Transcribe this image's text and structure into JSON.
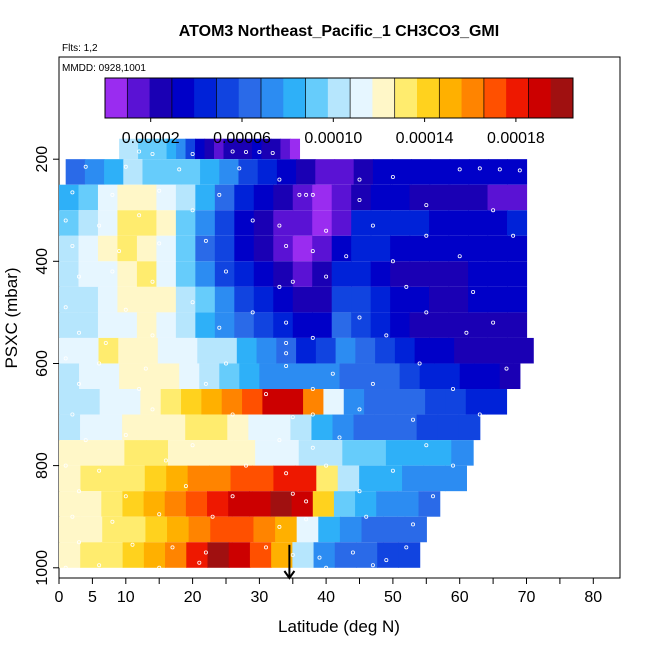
{
  "chart_data": {
    "type": "heatmap",
    "title": "ATOM3 Northeast_Pacific_1 CH3CO3_GMI",
    "subtitle_flights": "Flts: 1,2",
    "subtitle_dates": "MMDD: 0928,1001",
    "xlabel": "Latitude (deg N)",
    "ylabel": "PSXC (mbar)",
    "xlim": [
      0,
      84
    ],
    "ylim": [
      1020,
      0
    ],
    "x_ticks": [
      0,
      5,
      10,
      20,
      30,
      40,
      50,
      60,
      70,
      80
    ],
    "x_tick_labels": [
      "0",
      "5",
      "10",
      "20",
      "30",
      "40",
      "50",
      "60",
      "70",
      "80"
    ],
    "y_ticks": [
      200,
      400,
      600,
      800,
      1000
    ],
    "y_tick_labels": [
      "200",
      "400",
      "600",
      "800",
      "1000"
    ],
    "colorbar": {
      "min": 0.0,
      "max": 0.000205,
      "tick_values": [
        2e-05,
        6e-05,
        0.0001,
        0.00014,
        0.00018
      ],
      "tick_labels": [
        "0.00002",
        "0.00006",
        "0.00010",
        "0.00014",
        "0.00018"
      ],
      "colors": [
        "#9a2cf0",
        "#5a12d4",
        "#1a00b4",
        "#0000c8",
        "#0022d8",
        "#1144e0",
        "#2a6ae8",
        "#2c8cf2",
        "#2eb0f8",
        "#66ccfb",
        "#b6e6fd",
        "#e6f6ff",
        "#fff7c8",
        "#ffec6e",
        "#ffd21e",
        "#ffb000",
        "#ff8400",
        "#ff5000",
        "#ee1800",
        "#cc0000",
        "#a01010"
      ]
    },
    "bands": [
      {
        "p_top": 160,
        "p_bot": 200,
        "lat_start": 9,
        "lat_end": 36,
        "values": [
          0.000105,
          0.0001,
          9.5e-05,
          9e-05,
          9.5e-05,
          8.5e-05,
          7e-05,
          5e-05,
          3e-05,
          2e-05,
          1.8e-05,
          2e-05,
          2.5e-05,
          2.8e-05,
          3e-05,
          2.8e-05,
          2.2e-05,
          1e-05,
          6e-06
        ]
      },
      {
        "p_top": 200,
        "p_bot": 250,
        "lat_start": 1,
        "lat_end": 70,
        "values": [
          6.5e-05,
          7e-05,
          8e-05,
          0.0001,
          9.5e-05,
          9e-05,
          9e-05,
          8e-05,
          7e-05,
          5e-05,
          4e-05,
          3e-05,
          2e-05,
          1.5e-05,
          1e-05,
          2e-05,
          3.5e-05,
          3.5e-05,
          3.5e-05,
          3.5e-05,
          3.5e-05,
          3.2e-05,
          3e-05,
          3e-05
        ]
      },
      {
        "p_top": 250,
        "p_bot": 300,
        "lat_start": 0,
        "lat_end": 70,
        "values": [
          8e-05,
          9e-05,
          0.00011,
          0.00012,
          0.000125,
          0.000115,
          0.0001,
          8e-05,
          6e-05,
          4.5e-05,
          3e-05,
          2e-05,
          1.2e-05,
          8e-06,
          1.8e-05,
          2.8e-05,
          3.2e-05,
          3e-05,
          2.8e-05,
          2.6e-05,
          2.4e-05,
          2e-05,
          1.8e-05,
          1.8e-05
        ]
      },
      {
        "p_top": 300,
        "p_bot": 350,
        "lat_start": 0,
        "lat_end": 70,
        "values": [
          9e-05,
          0.0001,
          0.000115,
          0.00013,
          0.000135,
          0.00012,
          9.5e-05,
          7e-05,
          5e-05,
          3.5e-05,
          2.5e-05,
          1.8e-05,
          1.2e-05,
          8e-06,
          1.5e-05,
          4e-05,
          4.5e-05,
          4.2e-05,
          4e-05,
          3.8e-05,
          3.6e-05,
          3.6e-05,
          3.8e-05,
          4e-05
        ]
      },
      {
        "p_top": 350,
        "p_bot": 400,
        "lat_start": 0,
        "lat_end": 70,
        "values": [
          0.0001,
          0.00011,
          0.00012,
          0.00013,
          0.000125,
          0.00011,
          9e-05,
          6.5e-05,
          5e-05,
          3.5e-05,
          2.5e-05,
          1.5e-05,
          8e-06,
          1.2e-05,
          3e-05,
          4e-05,
          4e-05,
          3.8e-05,
          3.6e-05,
          3.4e-05,
          3.4e-05,
          3.4e-05,
          3.4e-05,
          3.6e-05
        ]
      },
      {
        "p_top": 400,
        "p_bot": 450,
        "lat_start": 0,
        "lat_end": 70,
        "values": [
          0.000105,
          0.00011,
          0.000115,
          0.000125,
          0.00013,
          0.000115,
          9e-05,
          7e-05,
          5.5e-05,
          4e-05,
          3e-05,
          2e-05,
          1e-05,
          2e-05,
          4.5e-05,
          4.5e-05,
          3.5e-05,
          2.8e-05,
          2.5e-05,
          2.5e-05,
          2.6e-05,
          3e-05,
          3.2e-05,
          3.5e-05
        ]
      },
      {
        "p_top": 450,
        "p_bot": 500,
        "lat_start": 0,
        "lat_end": 70,
        "values": [
          0.000105,
          0.000105,
          0.00011,
          0.00012,
          0.000125,
          0.00012,
          0.000105,
          9e-05,
          7e-05,
          5.5e-05,
          4e-05,
          3e-05,
          2e-05,
          2.5e-05,
          5.5e-05,
          5.5e-05,
          4.2e-05,
          3.5e-05,
          3e-05,
          2.8e-05,
          2.8e-05,
          3e-05,
          3.2e-05,
          3.4e-05
        ]
      },
      {
        "p_top": 500,
        "p_bot": 550,
        "lat_start": 0,
        "lat_end": 70,
        "values": [
          0.0001,
          0.000105,
          0.00011,
          0.000115,
          0.00012,
          0.000115,
          0.0001,
          8.5e-05,
          7e-05,
          6e-05,
          5e-05,
          4e-05,
          3e-05,
          3e-05,
          6e-05,
          5.5e-05,
          4.5e-05,
          3.5e-05,
          2.8e-05,
          2.5e-05,
          2.5e-05,
          2.4e-05,
          2.4e-05,
          2.6e-05
        ]
      },
      {
        "p_top": 550,
        "p_bot": 600,
        "lat_start": 0,
        "lat_end": 71,
        "values": [
          0.00011,
          0.000115,
          0.00013,
          0.000125,
          0.00012,
          0.000115,
          0.00011,
          0.000105,
          0.0001,
          8.5e-05,
          7e-05,
          6e-05,
          4.5e-05,
          5e-05,
          7e-05,
          6.5e-05,
          5.5e-05,
          4.5e-05,
          3.5e-05,
          3e-05,
          2.8e-05,
          2.5e-05,
          2.2e-05,
          2e-05
        ]
      },
      {
        "p_top": 600,
        "p_bot": 650,
        "lat_start": 0,
        "lat_end": 69,
        "values": [
          0.000105,
          0.00011,
          0.000115,
          0.00012,
          0.000125,
          0.00012,
          0.000115,
          0.000105,
          9.5e-05,
          8.5e-05,
          7.5e-05,
          7e-05,
          7e-05,
          7.5e-05,
          6.5e-05,
          6e-05,
          6e-05,
          5.5e-05,
          4.5e-05,
          4e-05,
          3.5e-05,
          3e-05,
          2.8e-05
        ]
      },
      {
        "p_top": 650,
        "p_bot": 700,
        "lat_start": 0,
        "lat_end": 67,
        "values": [
          0.0001,
          0.000105,
          0.00011,
          0.000115,
          0.000125,
          0.00013,
          0.00014,
          0.00015,
          0.00016,
          0.000175,
          0.00019,
          0.000195,
          0.00016,
          0.00011,
          7e-05,
          6.5e-05,
          6.5e-05,
          6e-05,
          5.5e-05,
          5e-05,
          4.5e-05,
          4e-05
        ]
      },
      {
        "p_top": 700,
        "p_bot": 750,
        "lat_start": 0,
        "lat_end": 63,
        "values": [
          0.000105,
          0.00011,
          0.000115,
          0.00012,
          0.00012,
          0.000125,
          0.00013,
          0.00013,
          0.000125,
          0.000115,
          0.00011,
          0.0001,
          8e-05,
          7e-05,
          6.5e-05,
          6e-05,
          6e-05,
          5.5e-05,
          5.5e-05,
          5e-05
        ]
      },
      {
        "p_top": 750,
        "p_bot": 800,
        "lat_start": 0,
        "lat_end": 62,
        "values": [
          0.00012,
          0.000125,
          0.000125,
          0.00013,
          0.00013,
          0.000125,
          0.000125,
          0.00012,
          0.00012,
          0.000115,
          0.00011,
          0.000105,
          0.0001,
          9.5e-05,
          9e-05,
          8.5e-05,
          8e-05,
          8e-05,
          7.5e-05
        ]
      },
      {
        "p_top": 800,
        "p_bot": 850,
        "lat_start": 0,
        "lat_end": 61,
        "values": [
          0.000125,
          0.00013,
          0.00013,
          0.000135,
          0.00014,
          0.00015,
          0.00016,
          0.000165,
          0.00017,
          0.000175,
          0.00018,
          0.00018,
          0.00013,
          0.0001,
          8.5e-05,
          8e-05,
          7.8e-05,
          7.5e-05,
          7.2e-05
        ]
      },
      {
        "p_top": 850,
        "p_bot": 900,
        "lat_start": 0,
        "lat_end": 57,
        "values": [
          0.00012,
          0.000125,
          0.00013,
          0.00014,
          0.00015,
          0.00016,
          0.00017,
          0.00018,
          0.00019,
          0.000195,
          0.0002,
          0.000195,
          0.00014,
          9e-05,
          8e-05,
          7.5e-05,
          7e-05,
          6.5e-05
        ]
      },
      {
        "p_top": 900,
        "p_bot": 950,
        "lat_start": 0,
        "lat_end": 55,
        "values": [
          0.00012,
          0.000125,
          0.00013,
          0.000135,
          0.000145,
          0.000155,
          0.000165,
          0.00017,
          0.00017,
          0.000165,
          0.00015,
          0.00011,
          8e-05,
          7e-05,
          6.8e-05,
          6.6e-05,
          6.4e-05
        ]
      },
      {
        "p_top": 950,
        "p_bot": 1000,
        "lat_start": 0,
        "lat_end": 54,
        "values": [
          0.000125,
          0.00013,
          0.000135,
          0.00014,
          0.00015,
          0.000165,
          0.000185,
          0.0002,
          0.00019,
          0.000175,
          0.000155,
          0.000105,
          7.5e-05,
          6.5e-05,
          6e-05,
          5.8e-05,
          5.6e-05
        ]
      }
    ],
    "arrow_marker": {
      "lat": 34.5,
      "p_from": 955,
      "p_to": 1020
    },
    "sample_points": [
      [
        12,
        185
      ],
      [
        14,
        190
      ],
      [
        20,
        190
      ],
      [
        26,
        185
      ],
      [
        28,
        186
      ],
      [
        30,
        186
      ],
      [
        32,
        188
      ],
      [
        4,
        215
      ],
      [
        10,
        215
      ],
      [
        18,
        220
      ],
      [
        27,
        218
      ],
      [
        33,
        240
      ],
      [
        60,
        220
      ],
      [
        63,
        218
      ],
      [
        66,
        220
      ],
      [
        69,
        222
      ],
      [
        45,
        240
      ],
      [
        50,
        235
      ],
      [
        2,
        265
      ],
      [
        8,
        270
      ],
      [
        15,
        262
      ],
      [
        24,
        270
      ],
      [
        36,
        270
      ],
      [
        37,
        270
      ],
      [
        38,
        270
      ],
      [
        45,
        280
      ],
      [
        55,
        290
      ],
      [
        65,
        300
      ],
      [
        1,
        320
      ],
      [
        6,
        330
      ],
      [
        12,
        310
      ],
      [
        20,
        300
      ],
      [
        29,
        320
      ],
      [
        33,
        330
      ],
      [
        40,
        340
      ],
      [
        47,
        330
      ],
      [
        55,
        350
      ],
      [
        68,
        350
      ],
      [
        2,
        370
      ],
      [
        9,
        380
      ],
      [
        15,
        365
      ],
      [
        22,
        360
      ],
      [
        34,
        370
      ],
      [
        38,
        380
      ],
      [
        43,
        390
      ],
      [
        50,
        400
      ],
      [
        60,
        390
      ],
      [
        3,
        430
      ],
      [
        8,
        420
      ],
      [
        14,
        440
      ],
      [
        25,
        420
      ],
      [
        33,
        450
      ],
      [
        35,
        440
      ],
      [
        40,
        430
      ],
      [
        52,
        450
      ],
      [
        62,
        460
      ],
      [
        1,
        490
      ],
      [
        10,
        495
      ],
      [
        20,
        480
      ],
      [
        29,
        500
      ],
      [
        34,
        520
      ],
      [
        45,
        510
      ],
      [
        55,
        500
      ],
      [
        65,
        520
      ],
      [
        3,
        540
      ],
      [
        7,
        560
      ],
      [
        14,
        545
      ],
      [
        24,
        530
      ],
      [
        34,
        560
      ],
      [
        34,
        580
      ],
      [
        38,
        550
      ],
      [
        49,
        545
      ],
      [
        61,
        540
      ],
      [
        1,
        590
      ],
      [
        6,
        600
      ],
      [
        13,
        610
      ],
      [
        25,
        600
      ],
      [
        34,
        605
      ],
      [
        41,
        620
      ],
      [
        54,
        600
      ],
      [
        67,
        610
      ],
      [
        3,
        640
      ],
      [
        12,
        650
      ],
      [
        22,
        640
      ],
      [
        31,
        660
      ],
      [
        38,
        650
      ],
      [
        47,
        640
      ],
      [
        59,
        650
      ],
      [
        2,
        700
      ],
      [
        14,
        690
      ],
      [
        26,
        700
      ],
      [
        35,
        705
      ],
      [
        38,
        700
      ],
      [
        45,
        690
      ],
      [
        53,
        710
      ],
      [
        63,
        700
      ],
      [
        4,
        750
      ],
      [
        10,
        740
      ],
      [
        20,
        760
      ],
      [
        33,
        750
      ],
      [
        38,
        765
      ],
      [
        42,
        745
      ],
      [
        55,
        760
      ],
      [
        1,
        800
      ],
      [
        6,
        810
      ],
      [
        16,
        790
      ],
      [
        28,
        800
      ],
      [
        34,
        815
      ],
      [
        40,
        800
      ],
      [
        50,
        810
      ],
      [
        59,
        800
      ],
      [
        3,
        850
      ],
      [
        10,
        860
      ],
      [
        19,
        840
      ],
      [
        26,
        860
      ],
      [
        35,
        855
      ],
      [
        37,
        870
      ],
      [
        45,
        850
      ],
      [
        56,
        860
      ],
      [
        2,
        900
      ],
      [
        8,
        910
      ],
      [
        15,
        895
      ],
      [
        23,
        900
      ],
      [
        33,
        920
      ],
      [
        37,
        905
      ],
      [
        46,
        900
      ],
      [
        53,
        915
      ],
      [
        3,
        950
      ],
      [
        11,
        955
      ],
      [
        17,
        960
      ],
      [
        22,
        970
      ],
      [
        31,
        960
      ],
      [
        35,
        975
      ],
      [
        39,
        980
      ],
      [
        44,
        970
      ],
      [
        49,
        985
      ],
      [
        52,
        960
      ],
      [
        1,
        1000
      ],
      [
        6,
        995
      ],
      [
        15,
        1000
      ],
      [
        21,
        990
      ],
      [
        40,
        1000
      ],
      [
        47,
        995
      ]
    ]
  }
}
